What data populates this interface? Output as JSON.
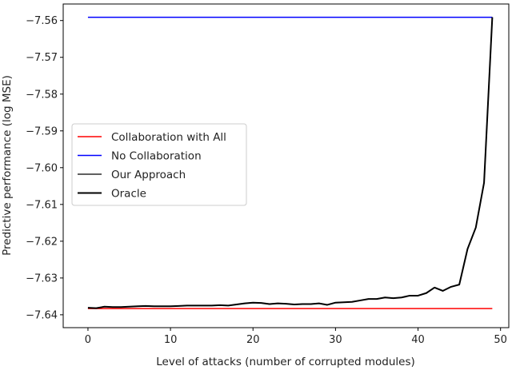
{
  "chart_data": {
    "type": "line",
    "title": "",
    "xlabel": "Level of attacks (number of corrupted modules)",
    "ylabel": "Predictive performance (log MSE)",
    "xlim": [
      -3,
      51
    ],
    "ylim": [
      -7.6435,
      -7.5555
    ],
    "xticks": [
      0,
      10,
      20,
      30,
      40,
      50
    ],
    "xtick_labels": [
      "0",
      "10",
      "20",
      "30",
      "40",
      "50"
    ],
    "yticks": [
      -7.64,
      -7.63,
      -7.62,
      -7.61,
      -7.6,
      -7.59,
      -7.58,
      -7.57,
      -7.56
    ],
    "ytick_labels": [
      "−7.64",
      "−7.63",
      "−7.62",
      "−7.61",
      "−7.60",
      "−7.59",
      "−7.58",
      "−7.57",
      "−7.56"
    ],
    "grid": false,
    "legend_position": "center-left",
    "series": [
      {
        "name": "Collaboration with All",
        "color": "#ff0000",
        "width": 1.5,
        "x": [
          0,
          49
        ],
        "y": [
          -7.6383,
          -7.6383
        ]
      },
      {
        "name": "No Collaboration",
        "color": "#0000ff",
        "width": 1.5,
        "x": [
          0,
          49
        ],
        "y": [
          -7.5591,
          -7.5591
        ]
      },
      {
        "name": "Our Approach",
        "color": "#000000",
        "width": 1.3,
        "x": [
          0,
          1,
          2,
          3,
          4,
          5,
          6,
          7,
          8,
          9,
          10,
          11,
          12,
          13,
          14,
          15,
          16,
          17,
          18,
          19,
          20,
          21,
          22,
          23,
          24,
          25,
          26,
          27,
          28,
          29,
          30,
          31,
          32,
          33,
          34,
          35,
          36,
          37,
          38,
          39,
          40,
          41,
          42,
          43,
          44,
          45,
          46,
          47,
          48,
          49
        ],
        "y": [
          -7.6381,
          -7.6382,
          -7.6378,
          -7.6379,
          -7.6379,
          -7.6378,
          -7.6377,
          -7.6376,
          -7.6377,
          -7.6377,
          -7.6377,
          -7.6376,
          -7.6375,
          -7.6375,
          -7.6375,
          -7.6375,
          -7.6374,
          -7.6375,
          -7.6372,
          -7.6369,
          -7.6367,
          -7.6368,
          -7.6371,
          -7.6369,
          -7.637,
          -7.6372,
          -7.6371,
          -7.6371,
          -7.6369,
          -7.6373,
          -7.6367,
          -7.6366,
          -7.6365,
          -7.6361,
          -7.6357,
          -7.6357,
          -7.6353,
          -7.6355,
          -7.6353,
          -7.6348,
          -7.6348,
          -7.6341,
          -7.6326,
          -7.6335,
          -7.6324,
          -7.6318,
          -7.6221,
          -7.6163,
          -7.6041,
          -7.5591
        ]
      },
      {
        "name": "Oracle",
        "color": "#000000",
        "width": 2.0,
        "x": [
          0,
          1,
          2,
          3,
          4,
          5,
          6,
          7,
          8,
          9,
          10,
          11,
          12,
          13,
          14,
          15,
          16,
          17,
          18,
          19,
          20,
          21,
          22,
          23,
          24,
          25,
          26,
          27,
          28,
          29,
          30,
          31,
          32,
          33,
          34,
          35,
          36,
          37,
          38,
          39,
          40,
          41,
          42,
          43,
          44,
          45,
          46,
          47,
          48,
          49
        ],
        "y": [
          -7.6381,
          -7.6382,
          -7.6378,
          -7.6379,
          -7.6379,
          -7.6378,
          -7.6377,
          -7.6376,
          -7.6377,
          -7.6377,
          -7.6377,
          -7.6376,
          -7.6375,
          -7.6375,
          -7.6375,
          -7.6375,
          -7.6374,
          -7.6375,
          -7.6372,
          -7.6369,
          -7.6367,
          -7.6368,
          -7.6371,
          -7.6369,
          -7.637,
          -7.6372,
          -7.6371,
          -7.6371,
          -7.6369,
          -7.6373,
          -7.6367,
          -7.6366,
          -7.6365,
          -7.6361,
          -7.6357,
          -7.6357,
          -7.6353,
          -7.6355,
          -7.6353,
          -7.6348,
          -7.6348,
          -7.6341,
          -7.6326,
          -7.6335,
          -7.6324,
          -7.6318,
          -7.6221,
          -7.6163,
          -7.6041,
          -7.5591
        ]
      }
    ]
  }
}
